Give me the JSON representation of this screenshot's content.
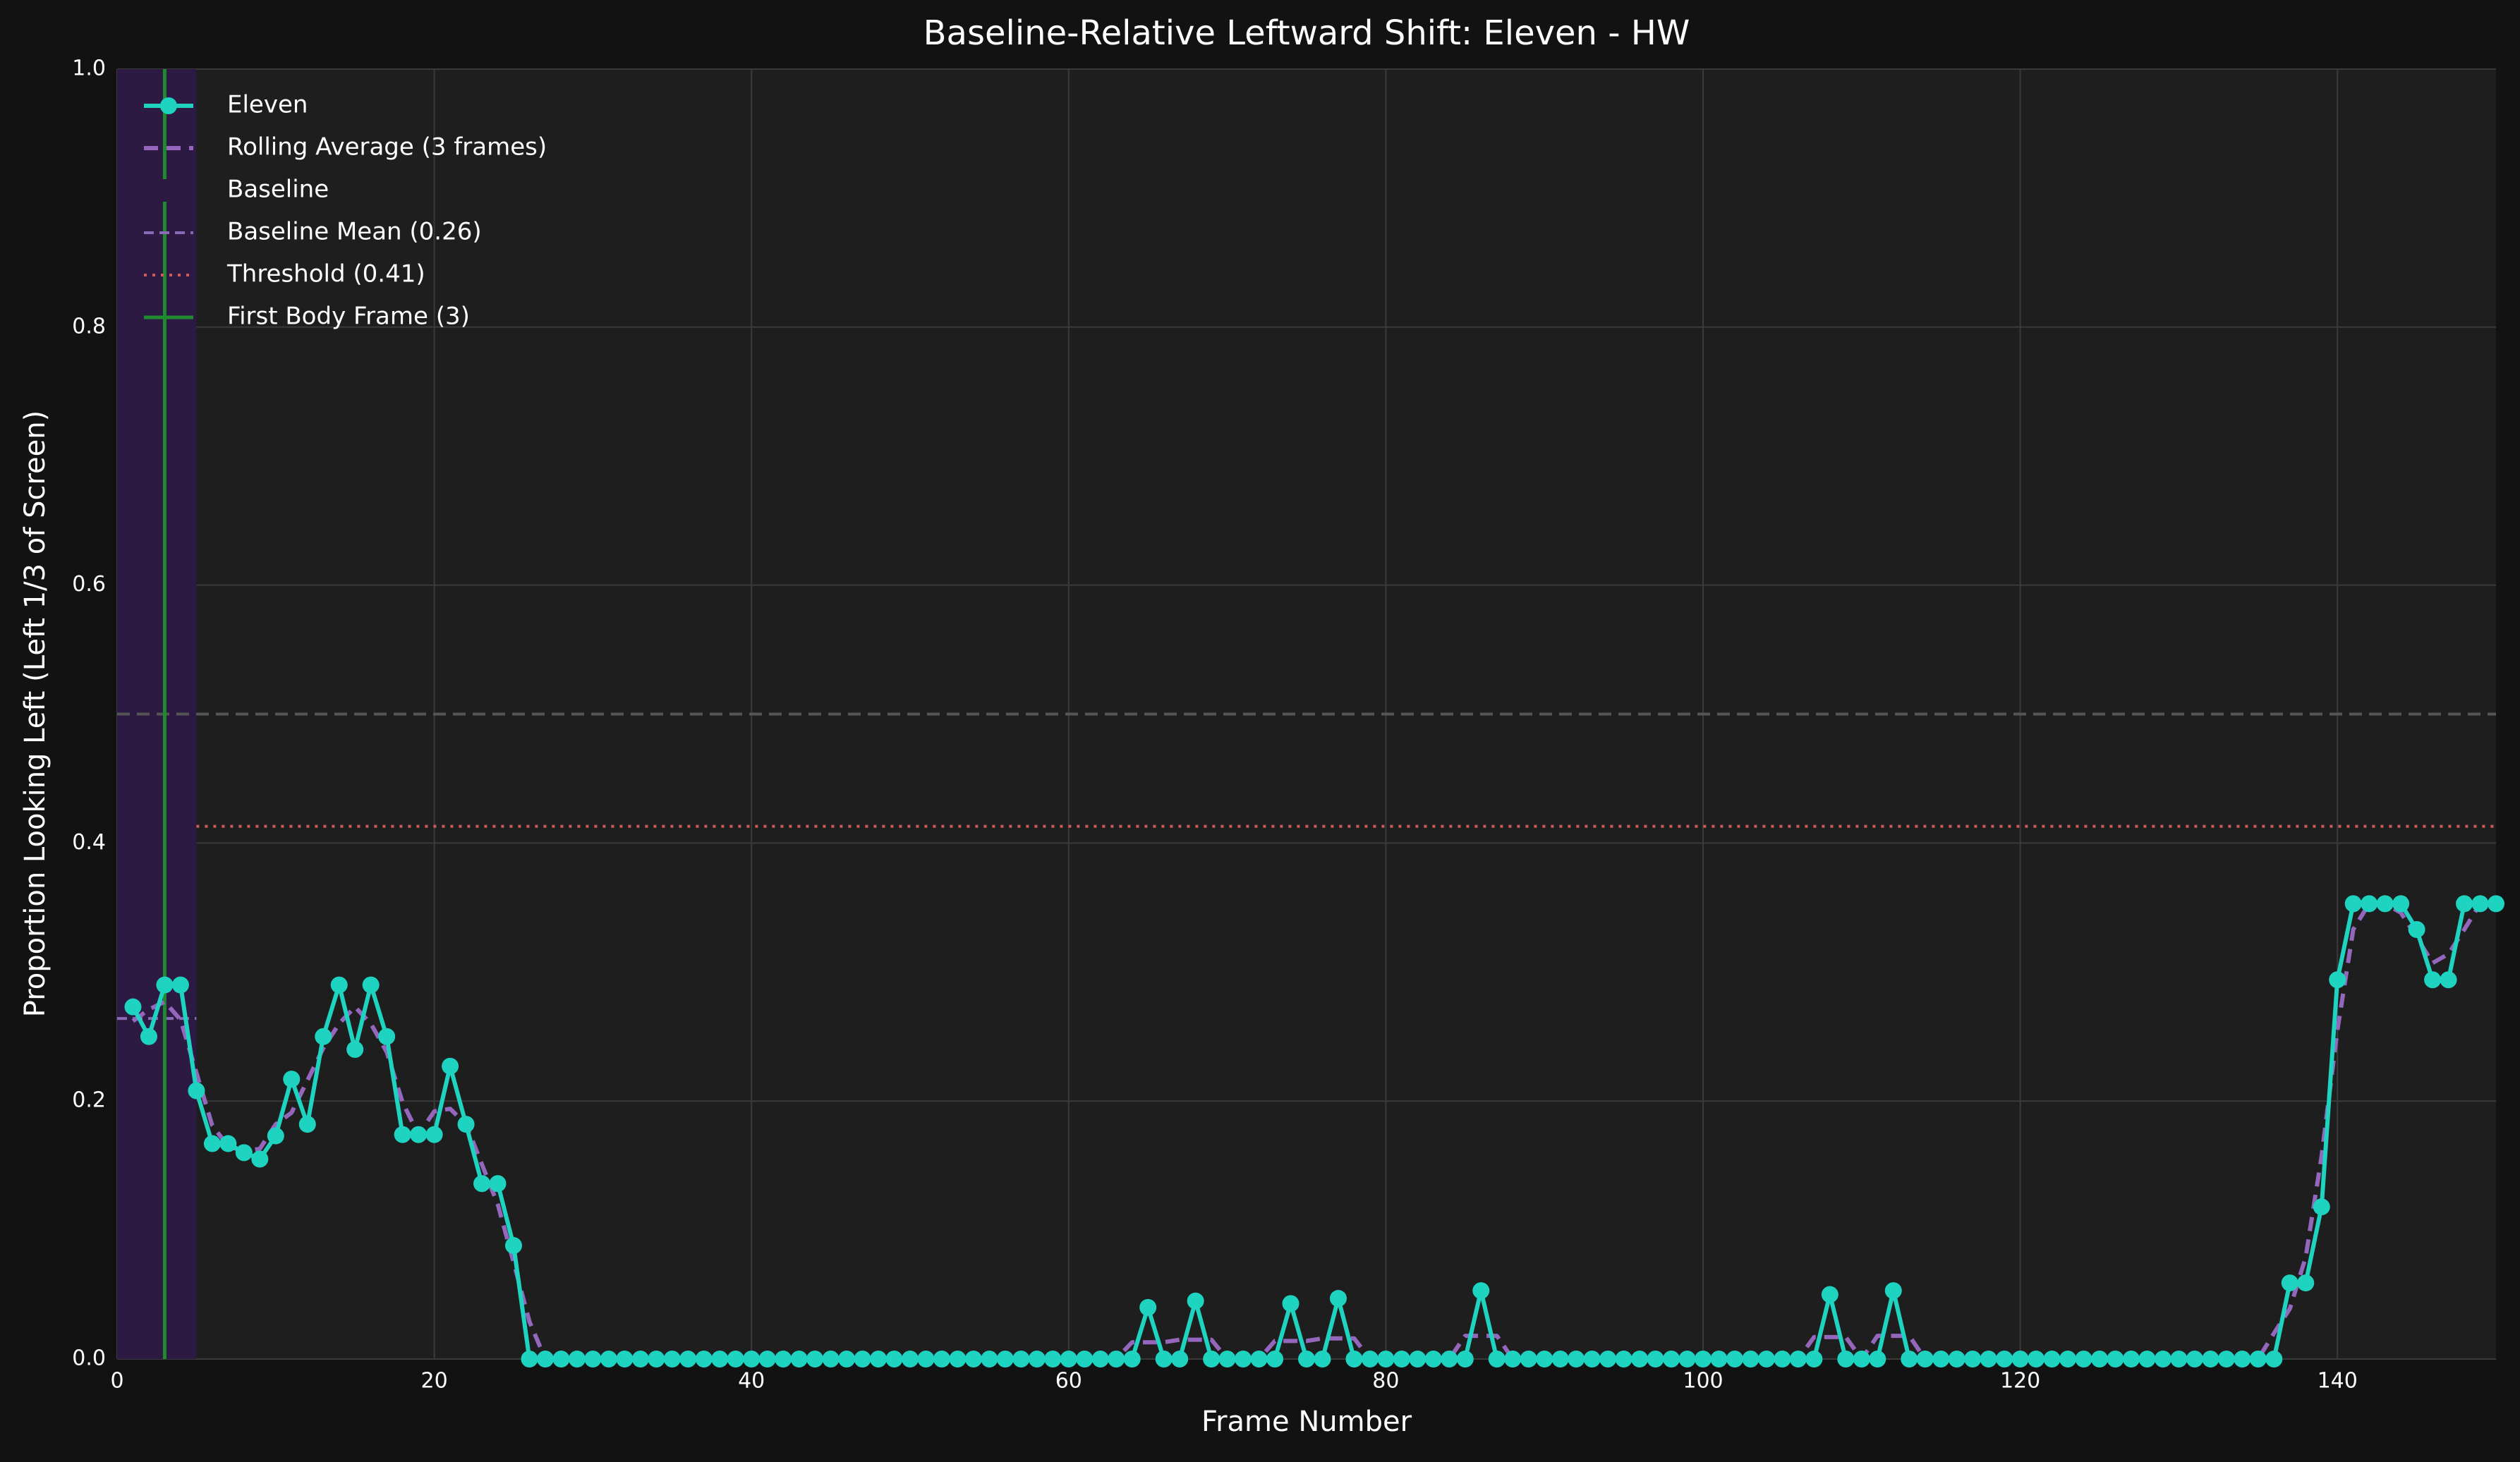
{
  "chart_data": {
    "type": "line",
    "title": "Baseline-Relative Leftward Shift: Eleven - HW",
    "xlabel": "Frame Number",
    "ylabel": "Proportion Looking Left (Left 1/3 of Screen)",
    "x": [
      1,
      2,
      3,
      4,
      5,
      6,
      7,
      8,
      9,
      10,
      11,
      12,
      13,
      14,
      15,
      16,
      17,
      18,
      19,
      20,
      21,
      22,
      23,
      24,
      25,
      26,
      27,
      28,
      29,
      30,
      31,
      32,
      33,
      34,
      35,
      36,
      37,
      38,
      39,
      40,
      41,
      42,
      43,
      44,
      45,
      46,
      47,
      48,
      49,
      50,
      51,
      52,
      53,
      54,
      55,
      56,
      57,
      58,
      59,
      60,
      61,
      62,
      63,
      64,
      65,
      66,
      67,
      68,
      69,
      70,
      71,
      72,
      73,
      74,
      75,
      76,
      77,
      78,
      79,
      80,
      81,
      82,
      83,
      84,
      85,
      86,
      87,
      88,
      89,
      90,
      91,
      92,
      93,
      94,
      95,
      96,
      97,
      98,
      99,
      100,
      101,
      102,
      103,
      104,
      105,
      106,
      107,
      108,
      109,
      110,
      111,
      112,
      113,
      114,
      115,
      116,
      117,
      118,
      119,
      120,
      121,
      122,
      123,
      124,
      125,
      126,
      127,
      128,
      129,
      130,
      131,
      132,
      133,
      134,
      135,
      136,
      137,
      138,
      139,
      140,
      141,
      142,
      143,
      144,
      145,
      146,
      147,
      148,
      149,
      150
    ],
    "series": [
      {
        "name": "Eleven",
        "color": "#1ed4c1",
        "marker": true,
        "style": "solid",
        "values": [
          0.273,
          0.25,
          0.29,
          0.29,
          0.208,
          0.167,
          0.167,
          0.16,
          0.155,
          0.173,
          0.217,
          0.182,
          0.25,
          0.29,
          0.24,
          0.29,
          0.25,
          0.174,
          0.174,
          0.174,
          0.227,
          0.182,
          0.136,
          0.136,
          0.088,
          0,
          0,
          0,
          0,
          0,
          0,
          0,
          0,
          0,
          0,
          0,
          0,
          0,
          0,
          0,
          0,
          0,
          0,
          0,
          0,
          0,
          0,
          0,
          0,
          0,
          0,
          0,
          0,
          0,
          0,
          0,
          0,
          0,
          0,
          0,
          0,
          0,
          0,
          0,
          0.04,
          0,
          0,
          0.045,
          0,
          0,
          0,
          0,
          0,
          0.043,
          0,
          0,
          0.047,
          0,
          0,
          0,
          0,
          0,
          0,
          0,
          0,
          0.053,
          0,
          0,
          0,
          0,
          0,
          0,
          0,
          0,
          0,
          0,
          0,
          0,
          0,
          0,
          0,
          0,
          0,
          0,
          0,
          0,
          0,
          0.05,
          0,
          0,
          0,
          0.053,
          0,
          0,
          0,
          0,
          0,
          0,
          0,
          0,
          0,
          0,
          0,
          0,
          0,
          0,
          0,
          0,
          0,
          0,
          0,
          0,
          0,
          0,
          0,
          0,
          0.059,
          0.059,
          0.118,
          0.294,
          0.353,
          0.353,
          0.353,
          0.353,
          0.333,
          0.294,
          0.294,
          0.353,
          0.353,
          0.353
        ]
      },
      {
        "name": "Rolling Average (3 frames)",
        "color": "#9467bd",
        "marker": false,
        "style": "dashed",
        "values": [
          0.262,
          0.271,
          0.277,
          0.263,
          0.222,
          0.181,
          0.165,
          0.161,
          0.163,
          0.182,
          0.191,
          0.216,
          0.241,
          0.26,
          0.273,
          0.26,
          0.238,
          0.199,
          0.174,
          0.192,
          0.194,
          0.182,
          0.151,
          0.12,
          0.075,
          0.029,
          0,
          0,
          0,
          0,
          0,
          0,
          0,
          0,
          0,
          0,
          0,
          0,
          0,
          0,
          0,
          0,
          0,
          0,
          0,
          0,
          0,
          0,
          0,
          0,
          0,
          0,
          0,
          0,
          0,
          0,
          0,
          0,
          0,
          0,
          0,
          0,
          0,
          0.013,
          0.013,
          0.013,
          0.015,
          0.015,
          0.015,
          0,
          0,
          0,
          0.014,
          0.014,
          0.014,
          0.016,
          0.016,
          0.016,
          0,
          0,
          0,
          0,
          0,
          0,
          0.018,
          0.018,
          0.018,
          0,
          0,
          0,
          0,
          0,
          0,
          0,
          0,
          0,
          0,
          0,
          0,
          0,
          0,
          0,
          0,
          0,
          0,
          0,
          0.017,
          0.017,
          0.017,
          0,
          0.018,
          0.018,
          0.018,
          0,
          0,
          0,
          0,
          0,
          0,
          0,
          0,
          0,
          0,
          0,
          0,
          0,
          0,
          0,
          0,
          0,
          0,
          0,
          0,
          0,
          0,
          0.02,
          0.039,
          0.079,
          0.157,
          0.255,
          0.333,
          0.353,
          0.353,
          0.346,
          0.327,
          0.307,
          0.314,
          0.333,
          0.353,
          0.353
        ]
      }
    ],
    "baseline": {
      "name": "Baseline",
      "start": 0,
      "end": 5,
      "color": "#2c1a42"
    },
    "baseline_mean": {
      "name": "Baseline Mean (0.26)",
      "value": 0.264,
      "start": 0,
      "end": 5,
      "color": "#8a6bb8"
    },
    "threshold": {
      "name": "Threshold (0.41)",
      "value": 0.413,
      "start": 5,
      "end": 150,
      "color": "#cd5c5c"
    },
    "first_body_frame": {
      "name": "First Body Frame (3)",
      "value": 3,
      "color": "#1f8a2e"
    },
    "reference_line": {
      "value": 0.5,
      "color": "#555555"
    },
    "xlim": [
      0,
      150
    ],
    "ylim": [
      0,
      1
    ],
    "xticks": [
      0,
      20,
      40,
      60,
      80,
      100,
      120,
      140
    ],
    "yticks": [
      {
        "value": 0,
        "label": "0.0"
      },
      {
        "value": 0.2,
        "label": "0.2"
      },
      {
        "value": 0.4,
        "label": "0.4"
      },
      {
        "value": 0.6,
        "label": "0.6"
      },
      {
        "value": 0.8,
        "label": "0.8"
      },
      {
        "value": 1,
        "label": "1.0"
      }
    ],
    "grid": true,
    "legend": "upper left"
  }
}
